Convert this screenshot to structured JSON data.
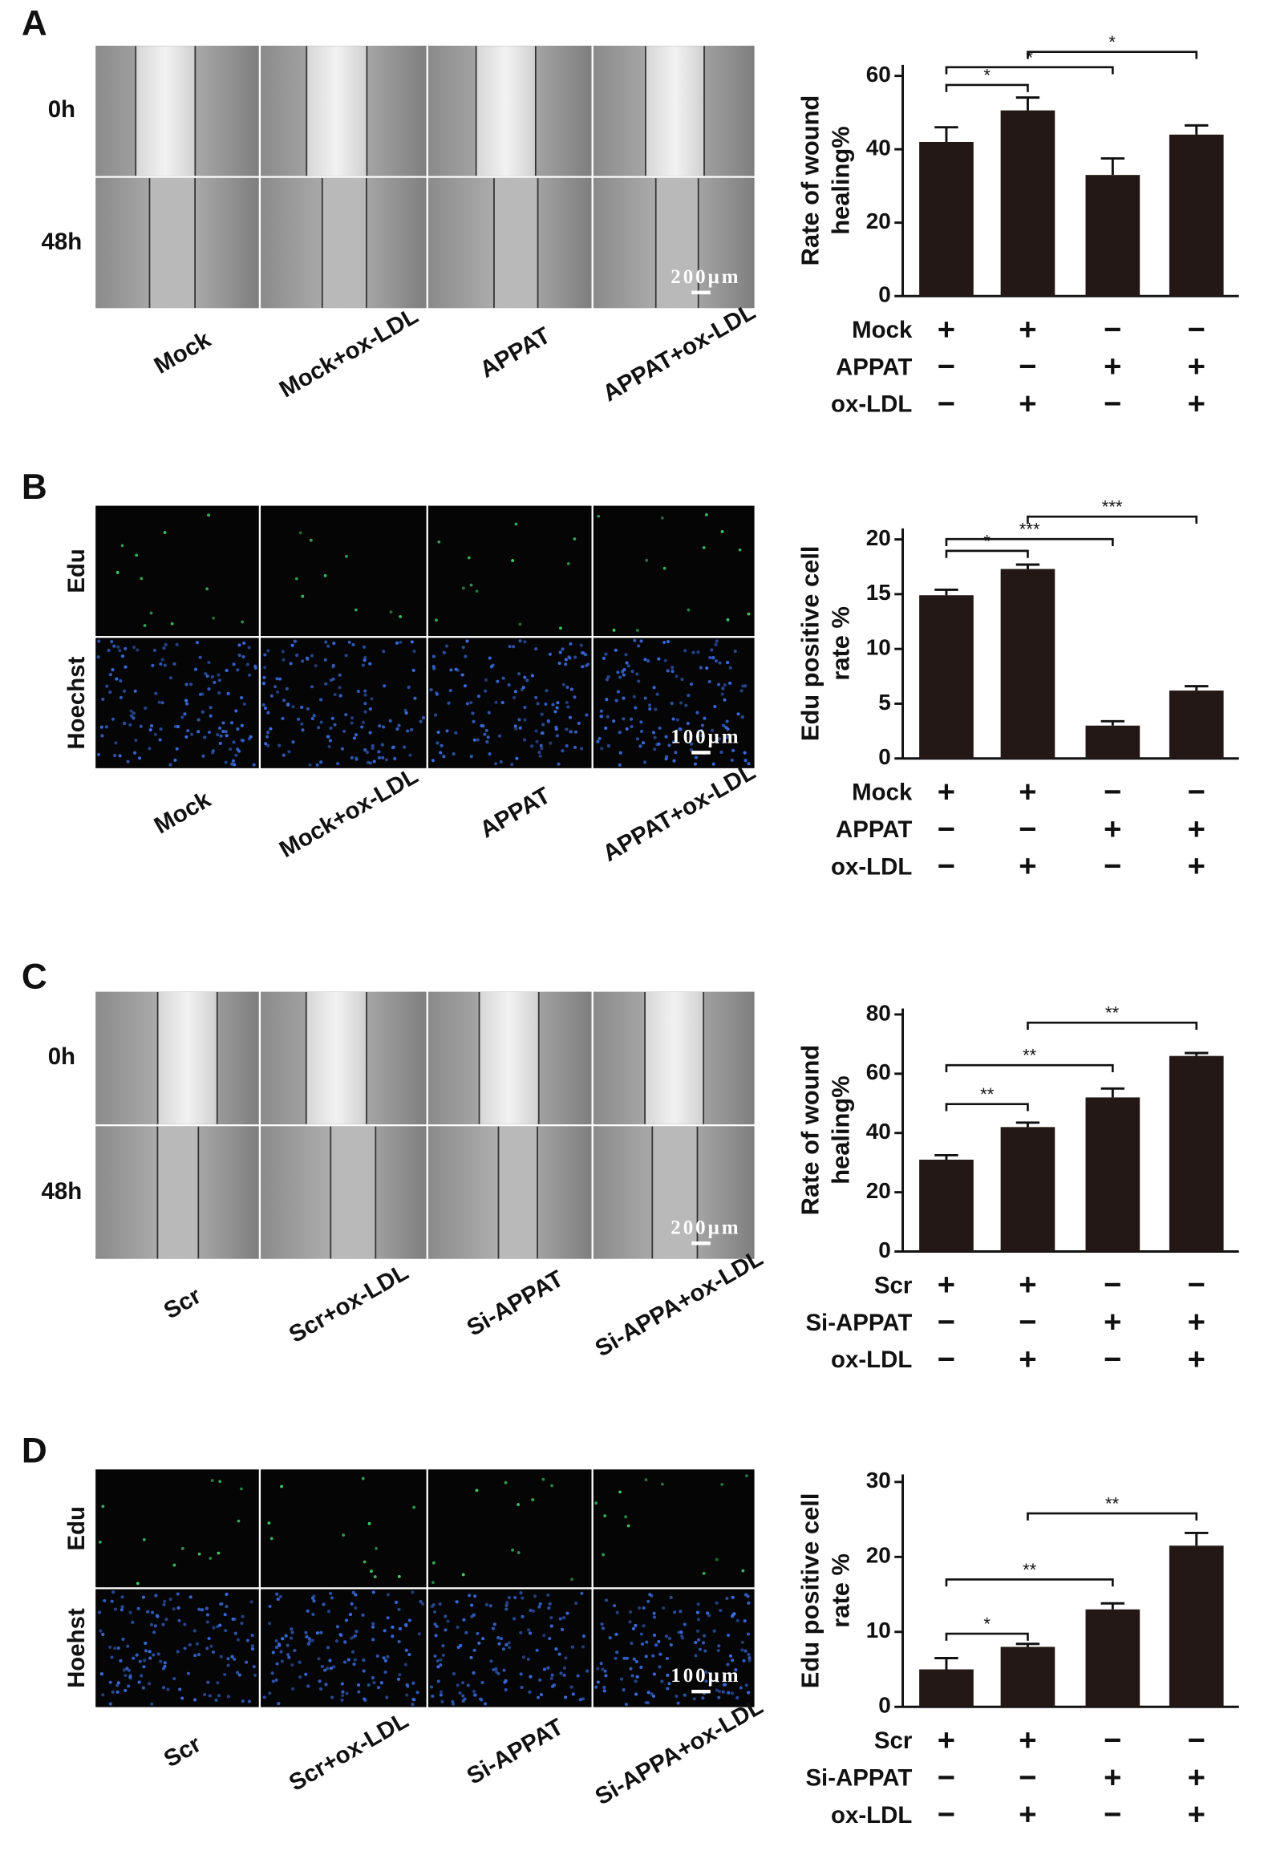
{
  "chart_data": [
    {
      "panel": "A",
      "type": "bar",
      "image_rows": [
        "0h",
        "48h"
      ],
      "image_style": "wound",
      "image_columns": [
        "Mock",
        "Mock+ox-LDL",
        "APPAT",
        "APPAT+ox-LDL"
      ],
      "scale_bar": "200μm",
      "ylabel": [
        "Rate of wound",
        "healing%"
      ],
      "ylim": [
        0,
        63
      ],
      "yticks": [
        0,
        20,
        40,
        60
      ],
      "color": "#231815",
      "values": [
        42,
        50.6,
        33,
        44
      ],
      "errors": [
        4,
        3.5,
        4.5,
        2.5
      ],
      "conditions": [
        {
          "name": "Mock",
          "signs": [
            "+",
            "+",
            "−",
            "−"
          ]
        },
        {
          "name": "APPAT",
          "signs": [
            "−",
            "−",
            "+",
            "+"
          ]
        },
        {
          "name": "ox-LDL",
          "signs": [
            "−",
            "+",
            "−",
            "+"
          ]
        }
      ],
      "significance": [
        {
          "groups": [
            0,
            1
          ],
          "label": "*"
        },
        {
          "groups": [
            0,
            2
          ],
          "label": "*"
        },
        {
          "groups": [
            1,
            3
          ],
          "label": "*"
        }
      ]
    },
    {
      "panel": "B",
      "type": "bar",
      "image_rows": [
        "Edu",
        "Hoechst"
      ],
      "image_style": "fluorescence",
      "image_columns": [
        "Mock",
        "Mock+ox-LDL",
        "APPAT",
        "APPAT+ox-LDL"
      ],
      "scale_bar": "100μm",
      "ylabel": [
        "Edu positive cell",
        "rate %"
      ],
      "ylim": [
        0,
        21
      ],
      "yticks": [
        0,
        5,
        10,
        15,
        20
      ],
      "color": "#231815",
      "values": [
        14.9,
        17.3,
        3.0,
        6.2
      ],
      "errors": [
        0.5,
        0.4,
        0.4,
        0.4
      ],
      "conditions": [
        {
          "name": "Mock",
          "signs": [
            "+",
            "+",
            "−",
            "−"
          ]
        },
        {
          "name": "APPAT",
          "signs": [
            "−",
            "−",
            "+",
            "+"
          ]
        },
        {
          "name": "ox-LDL",
          "signs": [
            "−",
            "+",
            "−",
            "+"
          ]
        }
      ],
      "significance": [
        {
          "groups": [
            0,
            1
          ],
          "label": "*"
        },
        {
          "groups": [
            0,
            2
          ],
          "label": "***"
        },
        {
          "groups": [
            1,
            3
          ],
          "label": "***"
        }
      ]
    },
    {
      "panel": "C",
      "type": "bar",
      "image_rows": [
        "0h",
        "48h"
      ],
      "image_style": "wound",
      "image_columns": [
        "Scr",
        "Scr+ox-LDL",
        "Si-APPAT",
        "Si-APPA+ox-LDL"
      ],
      "scale_bar": "200μm",
      "ylabel": [
        "Rate of wound",
        "healing%"
      ],
      "ylim": [
        0,
        82
      ],
      "yticks": [
        0,
        20,
        40,
        60,
        80
      ],
      "color": "#231815",
      "values": [
        31,
        42,
        52,
        66
      ],
      "errors": [
        1.5,
        1.5,
        3,
        1
      ],
      "conditions": [
        {
          "name": "Scr",
          "signs": [
            "+",
            "+",
            "−",
            "−"
          ]
        },
        {
          "name": "Si-APPAT",
          "signs": [
            "−",
            "−",
            "+",
            "+"
          ]
        },
        {
          "name": "ox-LDL",
          "signs": [
            "−",
            "+",
            "−",
            "+"
          ]
        }
      ],
      "significance": [
        {
          "groups": [
            0,
            1
          ],
          "label": "**"
        },
        {
          "groups": [
            0,
            2
          ],
          "label": "**"
        },
        {
          "groups": [
            1,
            3
          ],
          "label": "**"
        }
      ]
    },
    {
      "panel": "D",
      "type": "bar",
      "image_rows": [
        "Edu",
        "Hoehst"
      ],
      "image_style": "fluorescence",
      "image_columns": [
        "Scr",
        "Scr+ox-LDL",
        "Si-APPAT",
        "Si-APPA+ox-LDL"
      ],
      "scale_bar": "100μm",
      "ylabel": [
        "Edu positive cell",
        "rate %"
      ],
      "ylim": [
        0,
        31
      ],
      "yticks": [
        0,
        10,
        20,
        30
      ],
      "color": "#231815",
      "values": [
        5,
        8,
        13,
        21.5
      ],
      "errors": [
        1.5,
        0.4,
        0.8,
        1.7
      ],
      "conditions": [
        {
          "name": "Scr",
          "signs": [
            "+",
            "+",
            "−",
            "−"
          ]
        },
        {
          "name": "Si-APPAT",
          "signs": [
            "−",
            "−",
            "+",
            "+"
          ]
        },
        {
          "name": "ox-LDL",
          "signs": [
            "−",
            "+",
            "−",
            "+"
          ]
        }
      ],
      "significance": [
        {
          "groups": [
            0,
            1
          ],
          "label": "*"
        },
        {
          "groups": [
            0,
            2
          ],
          "label": "**"
        },
        {
          "groups": [
            1,
            3
          ],
          "label": "**"
        }
      ]
    }
  ]
}
